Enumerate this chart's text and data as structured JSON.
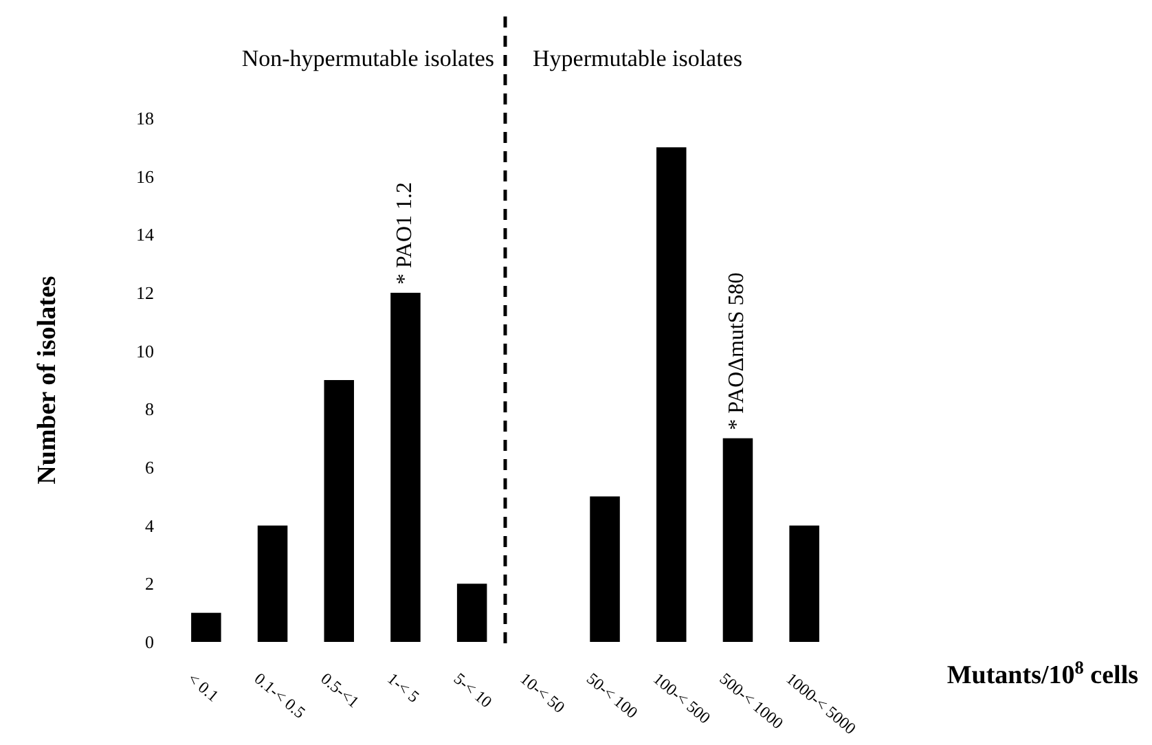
{
  "chart_data": {
    "type": "bar",
    "xlabel": "Mutants/10$^{8}$ cells",
    "ylabel": "Number of isolates",
    "categories": [
      "< 0.1",
      "0.1-< 0.5",
      "0.5-<1",
      "1-< 5",
      "5-< 10",
      "10-< 50",
      "50-< 100",
      "100-< 500",
      "500-< 1000",
      "1000-< 5000"
    ],
    "values": [
      1,
      4,
      9,
      12,
      2,
      0,
      5,
      17,
      7,
      4
    ],
    "color": "#000000",
    "ylim": [
      0,
      18
    ],
    "yticks": [
      0,
      2,
      4,
      6,
      8,
      10,
      12,
      14,
      16,
      18
    ],
    "grid": false,
    "annotations": [
      "Non-hypermutable isolates",
      "Hypermutable isolates",
      {
        "text": "* PAO1 1.2",
        "x": "1-< 5",
        "y": 12
      },
      {
        "text": "* PAOΔmutS 580",
        "x": "500-< 1000",
        "y": 7
      }
    ]
  }
}
